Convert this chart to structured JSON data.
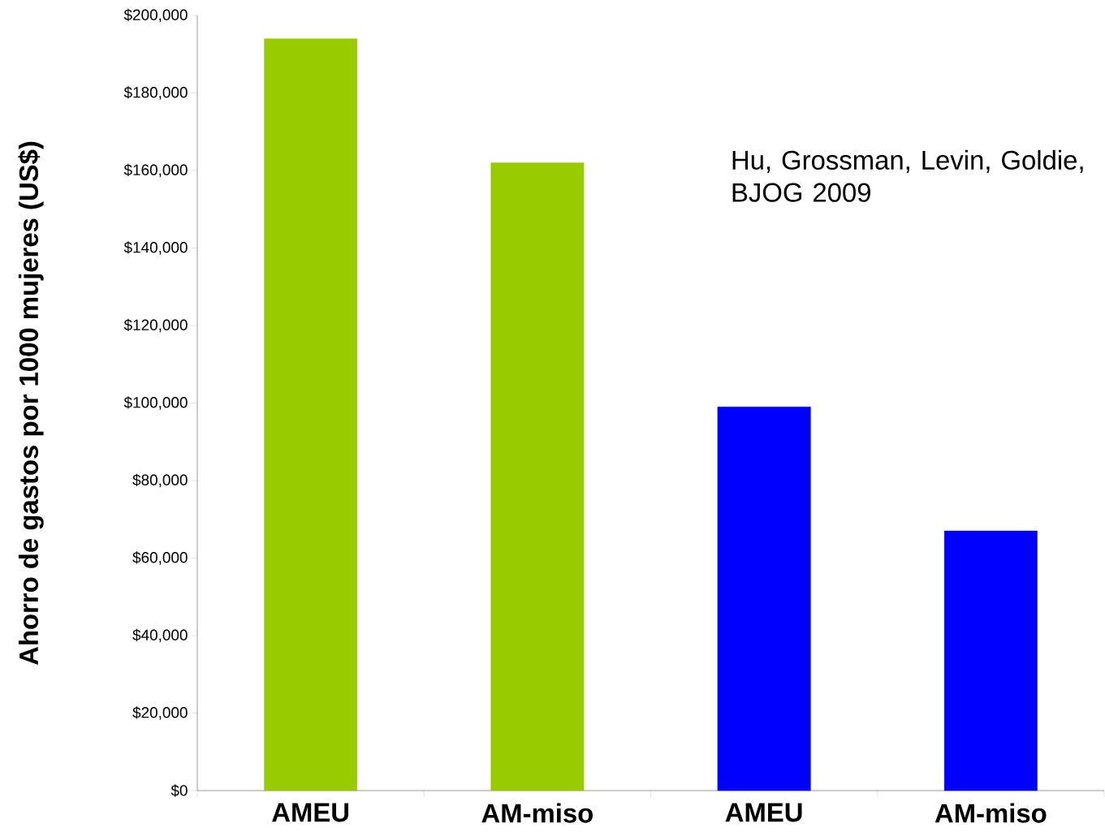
{
  "chart_data": {
    "type": "bar",
    "ylabel": "Ahorro de gastos por 1000 mujeres (US$)",
    "categories": [
      "AMEU",
      "AM-miso",
      "AMEU",
      "AM-miso"
    ],
    "values": [
      194000,
      162000,
      99000,
      67000
    ],
    "colors": [
      "#99cc00",
      "#99cc00",
      "#0000ff",
      "#0000ff"
    ],
    "ylim": [
      0,
      200000
    ],
    "yticks": [
      {
        "value": 0,
        "label": "$0"
      },
      {
        "value": 20000,
        "label": "$20,000"
      },
      {
        "value": 40000,
        "label": "$40,000"
      },
      {
        "value": 60000,
        "label": "$60,000"
      },
      {
        "value": 80000,
        "label": "$80,000"
      },
      {
        "value": 100000,
        "label": "$100,000"
      },
      {
        "value": 120000,
        "label": "$120,000"
      },
      {
        "value": 140000,
        "label": "$140,000"
      },
      {
        "value": 160000,
        "label": "$160,000"
      },
      {
        "value": 180000,
        "label": "$180,000"
      },
      {
        "value": 200000,
        "label": "$200,000"
      }
    ],
    "annotations": [
      "Hu, Grossman, Levin, Goldie, BJOG 2009"
    ],
    "grid": false
  }
}
